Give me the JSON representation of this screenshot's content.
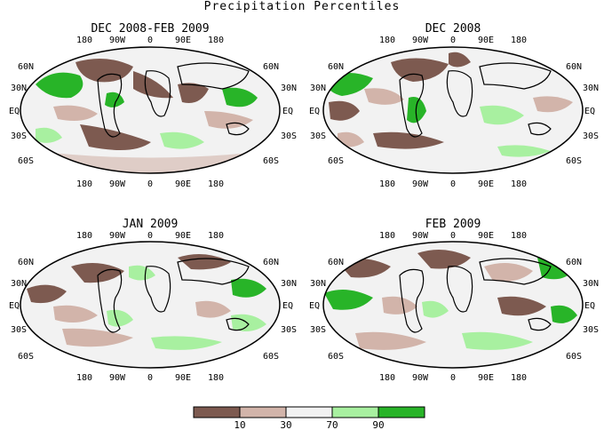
{
  "title": "Precipitation Percentiles",
  "panels": [
    {
      "title": "DEC 2008-FEB 2009",
      "lon_labels": [
        "180",
        "90W",
        "0",
        "90E",
        "180"
      ],
      "lat_labels": [
        "60N",
        "30N",
        "EQ",
        "30S",
        "60S"
      ]
    },
    {
      "title": "DEC 2008",
      "lon_labels": [
        "180",
        "90W",
        "0",
        "90E",
        "180"
      ],
      "lat_labels": [
        "60N",
        "30N",
        "EQ",
        "30S",
        "60S"
      ]
    },
    {
      "title": "JAN 2009",
      "lon_labels": [
        "180",
        "90W",
        "0",
        "90E",
        "180"
      ],
      "lat_labels": [
        "60N",
        "30N",
        "EQ",
        "30S",
        "60S"
      ]
    },
    {
      "title": "FEB 2009",
      "lon_labels": [
        "180",
        "90W",
        "0",
        "90E",
        "180"
      ],
      "lat_labels": [
        "60N",
        "30N",
        "EQ",
        "30S",
        "60S"
      ]
    }
  ],
  "legend": {
    "ticks": [
      "10",
      "30",
      "70",
      "90"
    ],
    "colors": [
      "#7d5a50",
      "#d2b4aa",
      "#f2f2f2",
      "#a8f0a0",
      "#28b428"
    ]
  }
}
